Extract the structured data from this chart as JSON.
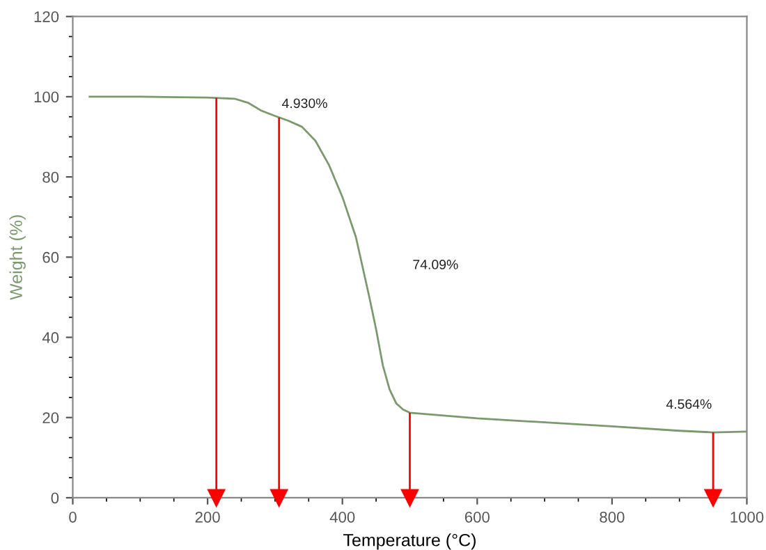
{
  "chart_data": {
    "type": "line",
    "xlabel": "Temperature (°C)",
    "ylabel": "Weight (%)",
    "x": [
      25,
      100,
      200,
      240,
      260,
      280,
      300,
      320,
      340,
      360,
      380,
      400,
      420,
      440,
      450,
      460,
      470,
      480,
      490,
      500,
      600,
      700,
      800,
      900,
      950,
      1000
    ],
    "series": [
      {
        "color": "#7a9a6e",
        "values": [
          100,
          100,
          99.8,
          99.5,
          98.5,
          96.5,
          95.2,
          94,
          92.5,
          89,
          83,
          75,
          65,
          50,
          42,
          33,
          27,
          23.5,
          22,
          21.2,
          19.8,
          18.8,
          17.8,
          16.7,
          16.3,
          16.5
        ]
      }
    ],
    "xlim": [
      0,
      1000
    ],
    "ylim": [
      0,
      120
    ],
    "xticks": [
      0,
      200,
      400,
      600,
      800,
      1000
    ],
    "yticks": [
      0,
      20,
      40,
      60,
      80,
      100,
      120
    ],
    "grid": false,
    "legend": false,
    "marker": "none",
    "line_style": "solid",
    "annotations": [
      "4.930%",
      "74.09%",
      "4.564%"
    ],
    "ref_lines": [
      {
        "axis": "x",
        "value": 213,
        "color": "#ff0000"
      },
      {
        "axis": "x",
        "value": 306,
        "color": "#ff0000"
      },
      {
        "axis": "x",
        "value": 500,
        "color": "#ff0000"
      },
      {
        "axis": "x",
        "value": 950,
        "color": "#ff0000"
      }
    ]
  }
}
